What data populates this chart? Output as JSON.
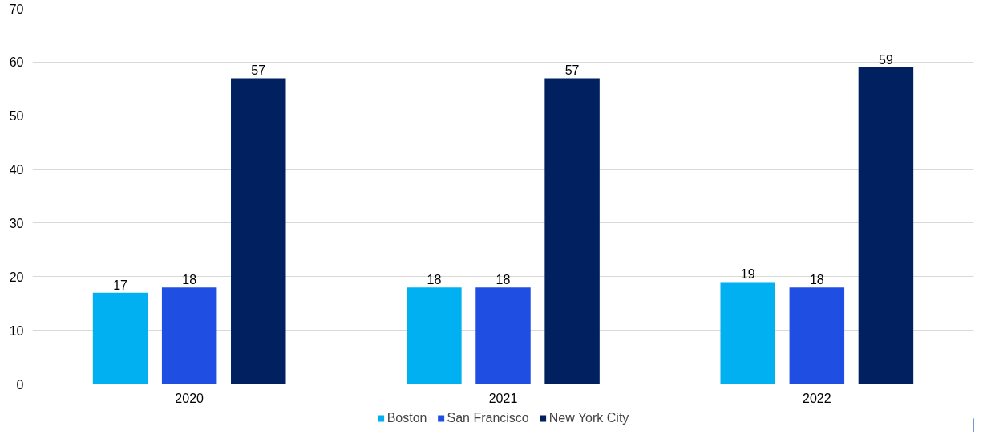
{
  "chart_data": {
    "type": "bar",
    "categories": [
      "2020",
      "2021",
      "2022"
    ],
    "series": [
      {
        "name": "Boston",
        "color": "#00b0f0",
        "values": [
          17,
          18,
          19
        ]
      },
      {
        "name": "San Francisco",
        "color": "#1f4ee3",
        "values": [
          18,
          18,
          18
        ]
      },
      {
        "name": "New York City",
        "color": "#002060",
        "values": [
          57,
          57,
          59
        ]
      }
    ],
    "ylim": [
      0,
      70
    ],
    "yticks": [
      0,
      10,
      20,
      30,
      40,
      50,
      60,
      70
    ],
    "grid": "y",
    "legend": "bottom",
    "data_labels": true
  }
}
